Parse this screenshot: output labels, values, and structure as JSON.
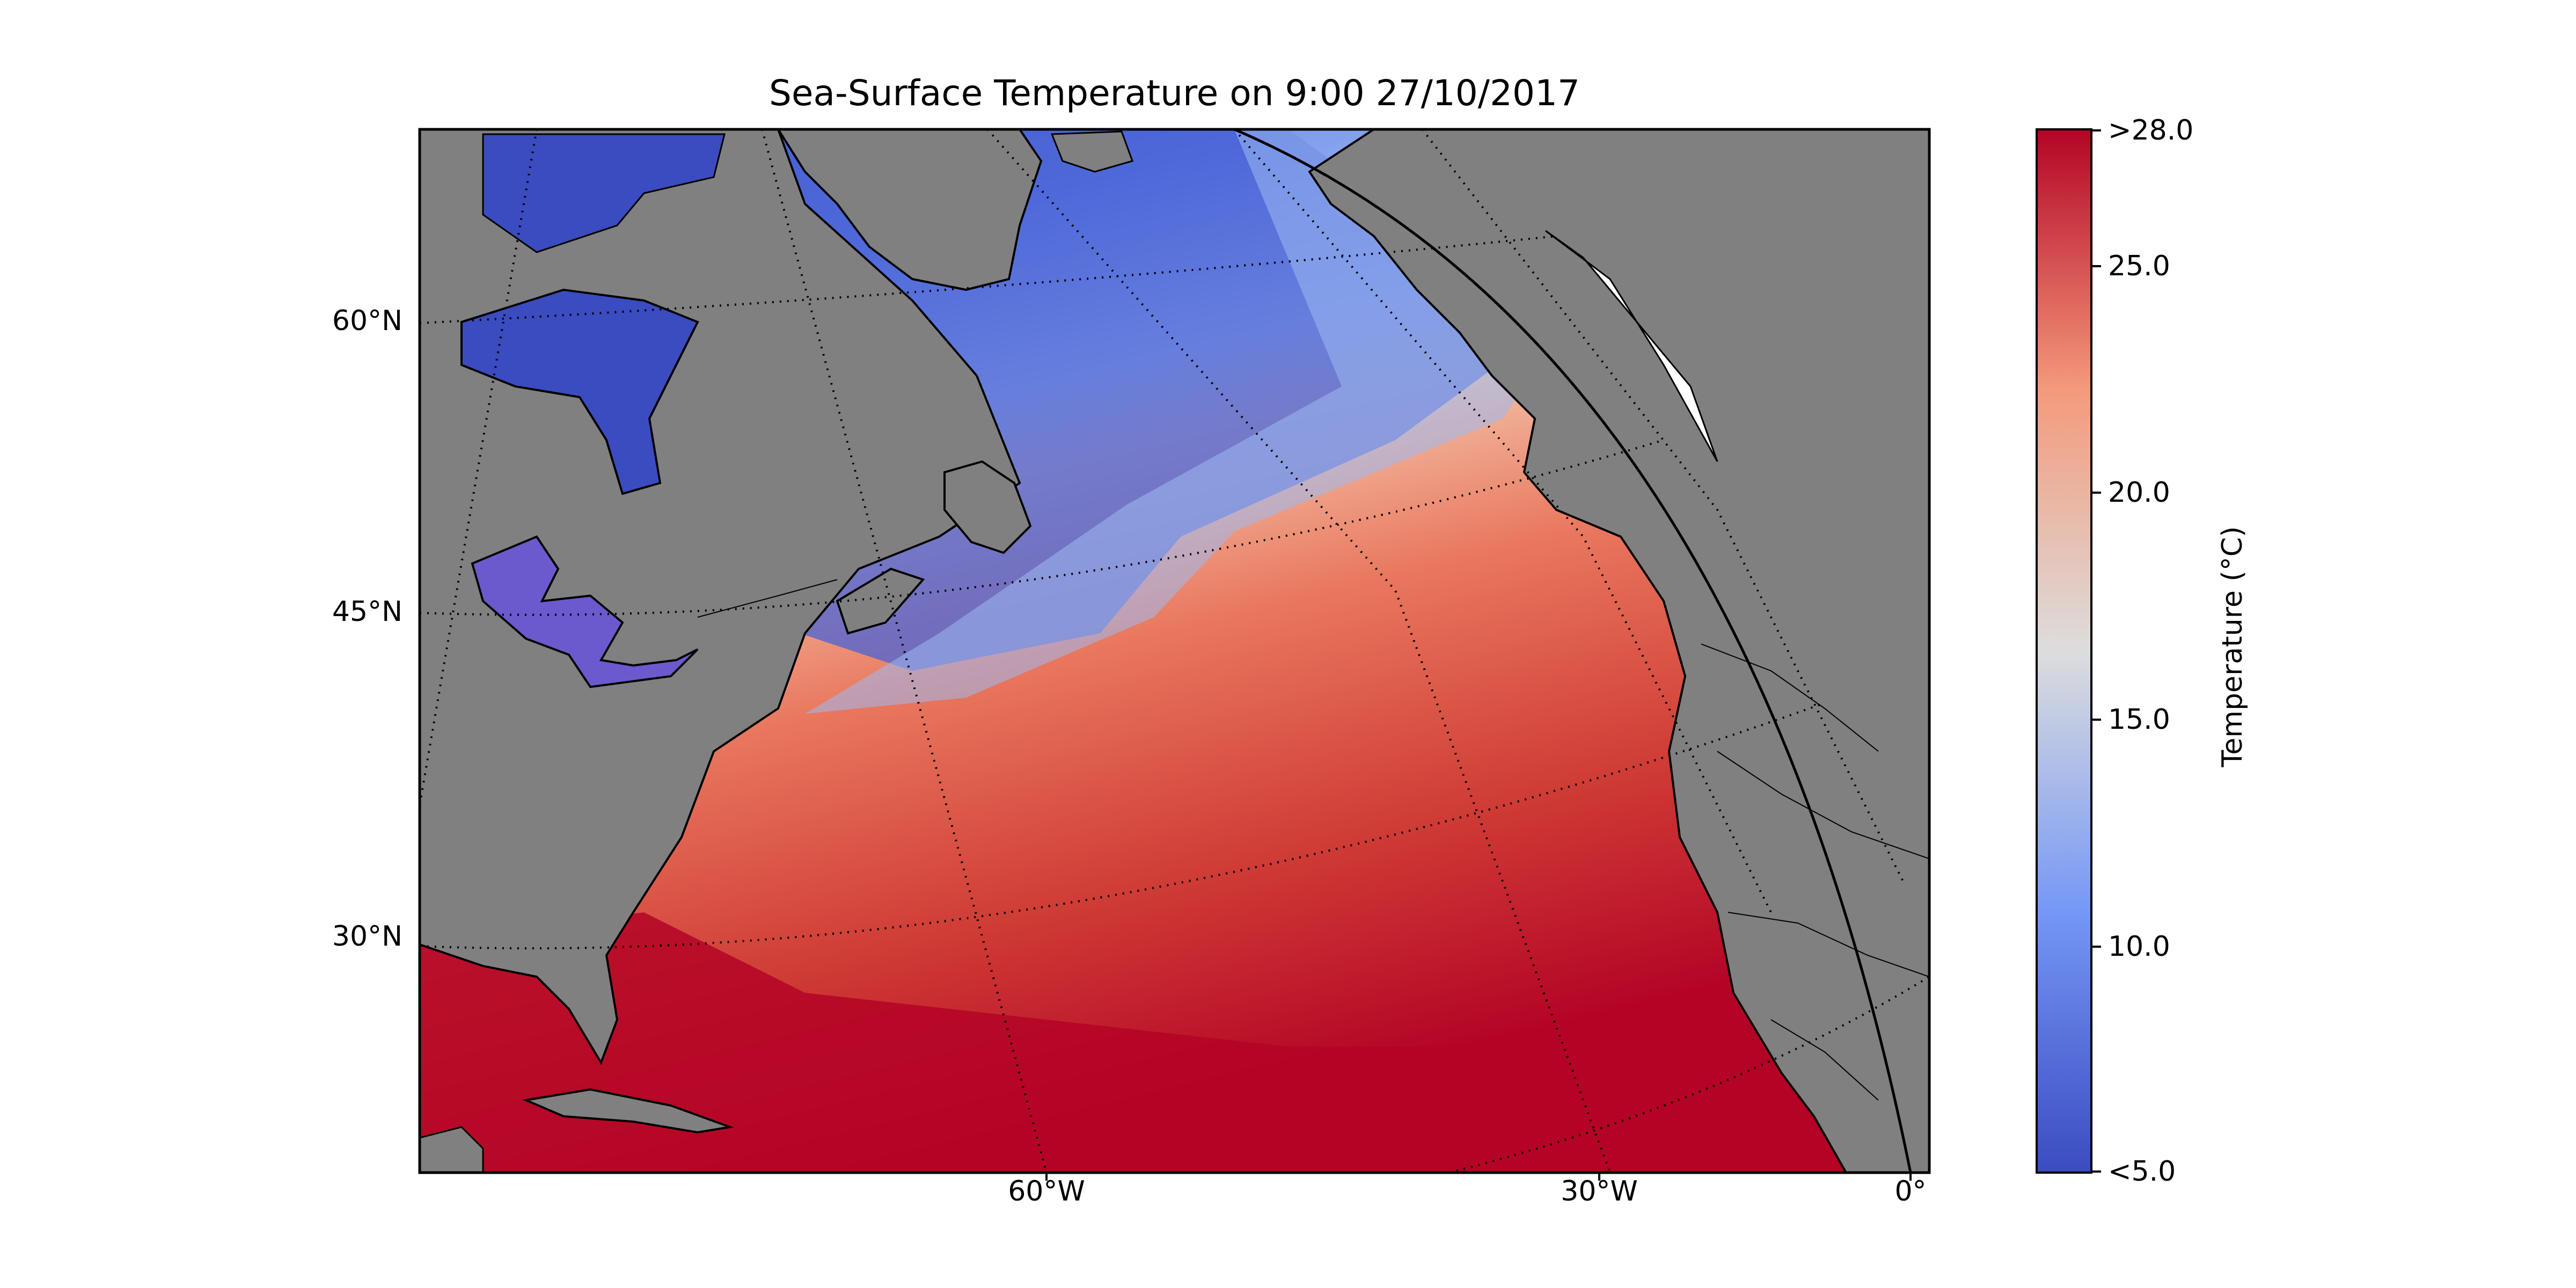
{
  "title": "Sea-Surface Temperature on 9:00 27/10/2017",
  "map": {
    "latitude_labels": [
      "60°N",
      "45°N",
      "30°N"
    ],
    "longitude_labels": [
      "60°W",
      "30°W",
      "0°"
    ],
    "gridlines": "dotted",
    "land_color": "#808080",
    "lake_color": "#6a5acd",
    "ice_color": "#ffffff"
  },
  "colorbar": {
    "title": "Temperature ($^\\circ$C)",
    "title_display": "Temperature (°C)",
    "ticks": [
      ">28.0",
      "25.0",
      "20.0",
      "15.0",
      "10.0",
      "<5.0"
    ],
    "range": [
      5.0,
      28.0
    ],
    "colormap": "coolwarm",
    "colors": {
      "low": "#3b4cc0",
      "mid": "#dddddd",
      "high": "#b40426"
    }
  }
}
